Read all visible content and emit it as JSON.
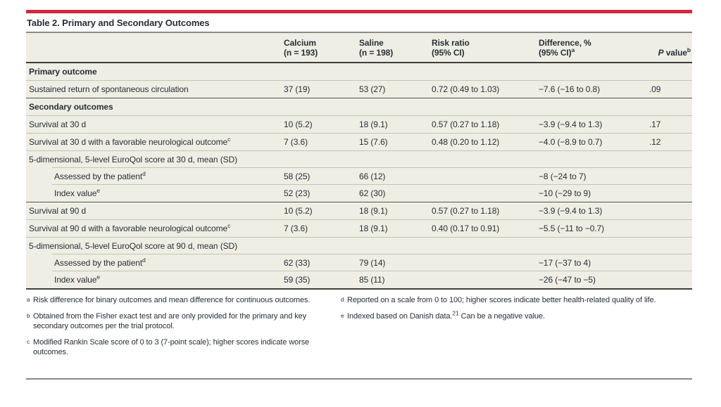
{
  "colors": {
    "accent_red": "#cf2a3e",
    "table_bg": "#efeee4",
    "text": "#272f38"
  },
  "title": "Table 2. Primary and Secondary Outcomes",
  "header": {
    "columns": [
      {
        "id": "label",
        "line1": "",
        "line2": ""
      },
      {
        "id": "calcium",
        "line1": "Calcium",
        "line2": "(n = 193)"
      },
      {
        "id": "saline",
        "line1": "Saline",
        "line2": "(n = 198)"
      },
      {
        "id": "risk-ratio",
        "line1": "Risk ratio",
        "line2": "(95% CI)"
      },
      {
        "id": "difference",
        "line1": "Difference, %",
        "line2": "(95% CI)^{a}"
      },
      {
        "id": "p-value",
        "line1": "",
        "line2": "*{P} value^{b}"
      }
    ]
  },
  "rows": [
    {
      "label": "Primary outcome",
      "style": "section",
      "rule": "none",
      "cells": [
        "",
        "",
        "",
        "",
        ""
      ]
    },
    {
      "label": "Sustained return of spontaneous circulation",
      "style": "data",
      "rule": "light",
      "cells": [
        "37 (19)",
        "53 (27)",
        "0.72 (0.49 to 1.03)",
        "−7.6 (−16 to 0.8)",
        ".09"
      ]
    },
    {
      "label": "Secondary outcomes",
      "style": "section",
      "rule": "medium",
      "cells": [
        "",
        "",
        "",
        "",
        ""
      ]
    },
    {
      "label": "Survival at 30 d",
      "style": "data",
      "rule": "light",
      "cells": [
        "10 (5.2)",
        "18 (9.1)",
        "0.57 (0.27 to 1.18)",
        "−3.9 (−9.4 to 1.3)",
        ".17"
      ]
    },
    {
      "label": "Survival at 30 d with a favorable neurological outcome^{c}",
      "style": "data",
      "rule": "light",
      "cells": [
        "7 (3.6)",
        "15 (7.6)",
        "0.48 (0.20 to 1.12)",
        "−4.0 (−8.9 to 0.7)",
        ".12"
      ]
    },
    {
      "label": "5-dimensional, 5-level EuroQol score at 30 d, mean (SD)",
      "style": "data",
      "rule": "light",
      "cells": [
        "",
        "",
        "",
        "",
        ""
      ]
    },
    {
      "label": "Assessed by the patient^{d}",
      "style": "sub",
      "rule": "indent",
      "cells": [
        "58 (25)",
        "66 (12)",
        "",
        "−8 (−24 to 7)",
        ""
      ]
    },
    {
      "label": "Index value^{e}",
      "style": "sub",
      "rule": "indent",
      "cells": [
        "52 (23)",
        "62 (30)",
        "",
        "−10 (−29 to 9)",
        ""
      ]
    },
    {
      "label": "Survival at 90 d",
      "style": "data",
      "rule": "medium",
      "cells": [
        "10 (5.2)",
        "18 (9.1)",
        "0.57 (0.27 to 1.18)",
        "−3.9 (−9.4 to 1.3)",
        ""
      ]
    },
    {
      "label": "Survival at 90 d with a favorable neurological outcome^{c}",
      "style": "data",
      "rule": "light",
      "cells": [
        "7 (3.6)",
        "18 (9.1)",
        "0.40 (0.17 to 0.91)",
        "−5.5 (−11 to −0.7)",
        ""
      ]
    },
    {
      "label": "5-dimensional, 5-level EuroQol score at 90 d, mean (SD)",
      "style": "data",
      "rule": "light",
      "cells": [
        "",
        "",
        "",
        "",
        ""
      ]
    },
    {
      "label": "Assessed by the patient^{d}",
      "style": "sub",
      "rule": "indent",
      "cells": [
        "62 (33)",
        "79 (14)",
        "",
        "−17 (−37 to 4)",
        ""
      ]
    },
    {
      "label": "Index value^{e}",
      "style": "sub",
      "rule": "indent",
      "cells": [
        "59 (35)",
        "85 (11)",
        "",
        "−26 (−47 to −5)",
        ""
      ]
    }
  ],
  "footnotes": {
    "left": [
      {
        "marker": "a",
        "text": "Risk difference for binary outcomes and mean difference for continuous outcomes."
      },
      {
        "marker": "b",
        "text": "Obtained from the Fisher exact test and are only provided for the primary and key secondary outcomes per the trial protocol."
      },
      {
        "marker": "c",
        "text": "Modified Rankin Scale score of 0 to 3 (7-point scale); higher scores indicate worse outcomes."
      }
    ],
    "right": [
      {
        "marker": "d",
        "text": "Reported on a scale from 0 to 100; higher scores indicate better health-related quality of life."
      },
      {
        "marker": "e",
        "text": "Indexed based on Danish data.^{21} Can be a negative value."
      }
    ]
  }
}
